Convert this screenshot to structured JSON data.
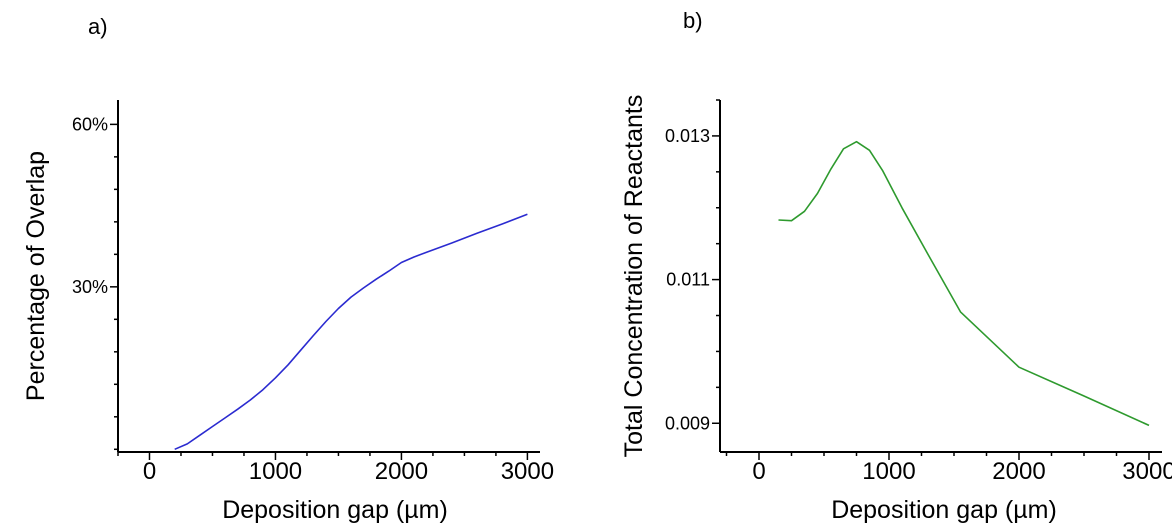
{
  "chart_data": [
    {
      "panel_label": "a)",
      "type": "line",
      "xlabel": "Deposition gap (µm)",
      "ylabel": "Percentage of Overlap",
      "xlim": [
        -250,
        3100
      ],
      "ylim": [
        -0.5,
        64.5
      ],
      "xticks": [
        0,
        1000,
        2000,
        3000
      ],
      "xtick_labels": [
        "0",
        "1000",
        "2000",
        "3000"
      ],
      "yticks": [
        30,
        60
      ],
      "ytick_labels": [
        "30%",
        "60%"
      ],
      "grid": false,
      "series": [
        {
          "color": "#2b2bd0",
          "x": [
            200,
            300,
            400,
            500,
            600,
            700,
            800,
            900,
            1000,
            1100,
            1200,
            1300,
            1400,
            1500,
            1600,
            1700,
            1800,
            1900,
            2000,
            2100,
            2200,
            2400,
            2600,
            2800,
            3000
          ],
          "y": [
            0,
            1,
            2.6,
            4.2,
            5.8,
            7.4,
            9.1,
            11.0,
            13.2,
            15.6,
            18.3,
            21.0,
            23.6,
            26.0,
            28.1,
            29.8,
            31.4,
            32.9,
            34.5,
            35.5,
            36.4,
            38.1,
            39.9,
            41.6,
            43.4
          ]
        }
      ]
    },
    {
      "panel_label": "b)",
      "type": "line",
      "xlabel": "Deposition gap (µm)",
      "ylabel": "Total Concentration of Reactants",
      "xlim": [
        -300,
        3100
      ],
      "ylim": [
        0.0086,
        0.0135
      ],
      "xticks": [
        0,
        1000,
        2000,
        3000
      ],
      "xtick_labels": [
        "0",
        "1000",
        "2000",
        "3000"
      ],
      "yticks": [
        0.009,
        0.011,
        0.013
      ],
      "ytick_labels": [
        "0.009",
        "0.011",
        "0.013"
      ],
      "grid": false,
      "series": [
        {
          "color": "#2e9a2e",
          "x": [
            150,
            250,
            350,
            450,
            550,
            650,
            750,
            850,
            950,
            1100,
            1300,
            1550,
            2000,
            2500,
            3000
          ],
          "y": [
            0.01183,
            0.01182,
            0.01195,
            0.0122,
            0.01253,
            0.01282,
            0.01292,
            0.0128,
            0.01252,
            0.012,
            0.01135,
            0.01055,
            0.00978,
            0.00938,
            0.00897
          ]
        }
      ]
    }
  ]
}
